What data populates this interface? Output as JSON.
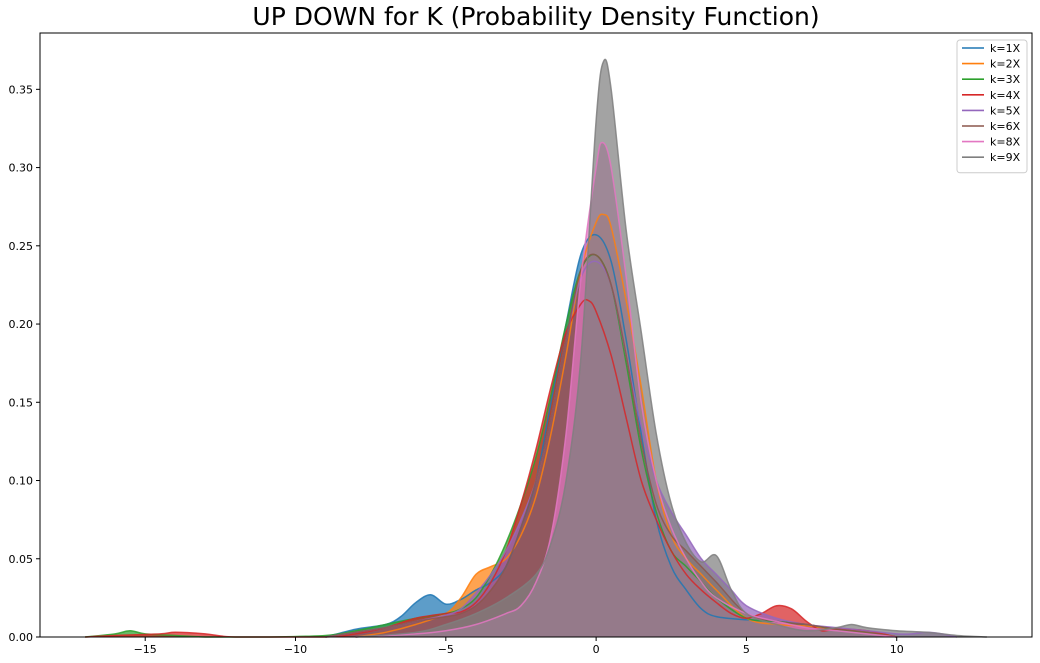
{
  "chart_data": {
    "type": "area",
    "title": "UP DOWN for K (Probability Density Function)",
    "xlabel": "",
    "ylabel": "",
    "xlim": [
      -18.5,
      14.5
    ],
    "ylim": [
      0,
      0.386
    ],
    "xticks": [
      -15,
      -10,
      -5,
      0,
      5,
      10
    ],
    "xtick_labels": [
      "−15",
      "−10",
      "−5",
      "0",
      "5",
      "10"
    ],
    "yticks": [
      0.0,
      0.05,
      0.1,
      0.15,
      0.2,
      0.25,
      0.3,
      0.35
    ],
    "ytick_labels": [
      "0.00",
      "0.05",
      "0.10",
      "0.15",
      "0.20",
      "0.25",
      "0.30",
      "0.35"
    ],
    "grid": false,
    "legend_position": "top-right",
    "series": [
      {
        "name": "k=1X",
        "color": "#1f77b4",
        "x": [
          -9,
          -8,
          -7,
          -6.5,
          -6,
          -5.5,
          -5,
          -4.5,
          -4,
          -3.5,
          -3,
          -2.5,
          -2,
          -1.5,
          -1,
          -0.5,
          0,
          0.5,
          1,
          1.5,
          2,
          2.5,
          3,
          3.5,
          4,
          5,
          6,
          7,
          8,
          9,
          10
        ],
        "y": [
          0,
          0.005,
          0.008,
          0.013,
          0.022,
          0.027,
          0.021,
          0.024,
          0.03,
          0.035,
          0.045,
          0.07,
          0.1,
          0.15,
          0.2,
          0.245,
          0.257,
          0.24,
          0.19,
          0.13,
          0.075,
          0.045,
          0.03,
          0.018,
          0.013,
          0.011,
          0.01,
          0.008,
          0.005,
          0.003,
          0
        ]
      },
      {
        "name": "k=2X",
        "color": "#ff7f0e",
        "x": [
          -8,
          -7,
          -6,
          -5,
          -4.5,
          -4,
          -3.5,
          -3,
          -2.5,
          -2,
          -1.5,
          -1,
          -0.5,
          0,
          0.25,
          0.5,
          1,
          1.5,
          2,
          2.5,
          3,
          3.5,
          4,
          5,
          6,
          7,
          8,
          9,
          10
        ],
        "y": [
          0,
          0.003,
          0.008,
          0.015,
          0.025,
          0.04,
          0.045,
          0.05,
          0.065,
          0.09,
          0.13,
          0.18,
          0.235,
          0.265,
          0.27,
          0.262,
          0.215,
          0.16,
          0.1,
          0.065,
          0.05,
          0.04,
          0.03,
          0.012,
          0.008,
          0.007,
          0.005,
          0.003,
          0
        ]
      },
      {
        "name": "k=3X",
        "color": "#2ca02c",
        "x": [
          -17,
          -16,
          -15.5,
          -15,
          -14,
          -13,
          -11,
          -9,
          -8,
          -7,
          -6,
          -5,
          -4.5,
          -4,
          -3.5,
          -3,
          -2.5,
          -2,
          -1.5,
          -1,
          -0.5,
          0,
          0.5,
          1,
          1.5,
          2,
          2.5,
          3,
          3.5,
          4,
          5,
          6,
          7,
          8,
          9,
          10
        ],
        "y": [
          0,
          0.002,
          0.004,
          0.002,
          0.001,
          0,
          0,
          0.001,
          0.004,
          0.008,
          0.012,
          0.015,
          0.018,
          0.025,
          0.04,
          0.06,
          0.085,
          0.115,
          0.155,
          0.2,
          0.235,
          0.244,
          0.225,
          0.175,
          0.12,
          0.08,
          0.055,
          0.045,
          0.035,
          0.025,
          0.012,
          0.01,
          0.008,
          0.005,
          0.003,
          0
        ]
      },
      {
        "name": "k=4X",
        "color": "#d62728",
        "x": [
          -17,
          -16,
          -14.5,
          -14,
          -13,
          -12,
          -9,
          -8,
          -7,
          -6,
          -5,
          -4.5,
          -4,
          -3.5,
          -3,
          -2.5,
          -2,
          -1.5,
          -1,
          -0.5,
          -0.25,
          0,
          0.5,
          1,
          1.5,
          2,
          2.5,
          3,
          3.5,
          4,
          4.5,
          5,
          5.5,
          6,
          6.5,
          7,
          7.5,
          8,
          9,
          10
        ],
        "y": [
          0,
          0.001,
          0.002,
          0.003,
          0.002,
          0,
          0,
          0.002,
          0.006,
          0.012,
          0.015,
          0.016,
          0.022,
          0.035,
          0.055,
          0.085,
          0.12,
          0.16,
          0.195,
          0.213,
          0.215,
          0.208,
          0.18,
          0.14,
          0.1,
          0.075,
          0.055,
          0.04,
          0.03,
          0.022,
          0.015,
          0.012,
          0.015,
          0.02,
          0.018,
          0.01,
          0.004,
          0.005,
          0.004,
          0
        ]
      },
      {
        "name": "k=5X",
        "color": "#9467bd",
        "x": [
          -9,
          -8,
          -7,
          -6,
          -5,
          -4.5,
          -4,
          -3.5,
          -3,
          -2.5,
          -2,
          -1.5,
          -1,
          -0.5,
          0,
          0.5,
          1,
          1.5,
          2,
          2.5,
          3,
          3.5,
          4,
          4.5,
          5,
          6,
          7,
          8,
          9,
          10,
          10.5,
          11,
          11.5,
          12
        ],
        "y": [
          0,
          0.003,
          0.006,
          0.01,
          0.014,
          0.018,
          0.028,
          0.04,
          0.055,
          0.075,
          0.1,
          0.14,
          0.19,
          0.23,
          0.24,
          0.225,
          0.18,
          0.135,
          0.1,
          0.08,
          0.065,
          0.05,
          0.04,
          0.03,
          0.02,
          0.012,
          0.008,
          0.006,
          0.004,
          0.002,
          0.002,
          0.003,
          0.002,
          0
        ]
      },
      {
        "name": "k=6X",
        "color": "#8c564b",
        "x": [
          -9,
          -8,
          -7,
          -6,
          -5,
          -4.5,
          -4,
          -3.5,
          -3,
          -2.5,
          -2,
          -1.5,
          -1,
          -0.5,
          0,
          0.5,
          1,
          1.5,
          2,
          2.5,
          3,
          3.5,
          4,
          5,
          6,
          7,
          8,
          9,
          10
        ],
        "y": [
          0,
          0.003,
          0.006,
          0.01,
          0.013,
          0.015,
          0.02,
          0.03,
          0.045,
          0.07,
          0.1,
          0.14,
          0.19,
          0.235,
          0.244,
          0.225,
          0.18,
          0.125,
          0.085,
          0.065,
          0.055,
          0.045,
          0.035,
          0.015,
          0.01,
          0.008,
          0.005,
          0.003,
          0
        ]
      },
      {
        "name": "k=8X",
        "color": "#e377c2",
        "x": [
          -8,
          -6,
          -5,
          -4,
          -3,
          -2.5,
          -2,
          -1.5,
          -1,
          -0.5,
          0,
          0.2,
          0.5,
          1,
          1.5,
          2,
          2.5,
          3,
          3.5,
          4,
          5,
          6,
          7,
          8,
          9,
          10
        ],
        "y": [
          0,
          0.002,
          0.004,
          0.008,
          0.015,
          0.02,
          0.035,
          0.065,
          0.13,
          0.23,
          0.3,
          0.316,
          0.3,
          0.23,
          0.15,
          0.1,
          0.07,
          0.05,
          0.035,
          0.025,
          0.015,
          0.01,
          0.006,
          0.004,
          0.002,
          0
        ]
      },
      {
        "name": "k=9X",
        "color": "#7f7f7f",
        "x": [
          -8,
          -6,
          -5,
          -4,
          -3,
          -2,
          -1.5,
          -1,
          -0.5,
          0,
          0.25,
          0.5,
          1,
          1.5,
          2,
          2.5,
          3,
          3.5,
          4,
          4.5,
          5,
          6,
          7,
          8,
          8.5,
          9,
          10,
          11,
          12,
          13
        ],
        "y": [
          0,
          0.003,
          0.008,
          0.015,
          0.025,
          0.04,
          0.06,
          0.1,
          0.18,
          0.33,
          0.368,
          0.35,
          0.26,
          0.195,
          0.13,
          0.085,
          0.06,
          0.048,
          0.052,
          0.03,
          0.015,
          0.008,
          0.004,
          0.006,
          0.008,
          0.006,
          0.004,
          0.003,
          0.001,
          0
        ]
      }
    ]
  }
}
